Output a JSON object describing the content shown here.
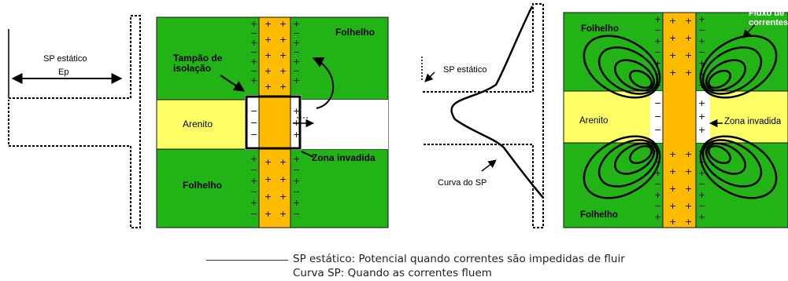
{
  "left_panel": {
    "sp_static_label": "SP estático",
    "ep_label": "Ep",
    "shale_top": "Folhelho",
    "shale_bottom": "Folhelho",
    "sand": "Arenito",
    "plug": "Tampão de\nisolação",
    "invaded": "Zona invadida"
  },
  "right_panel": {
    "sp_static_label": "SP estático",
    "sp_curve_label": "Curva do SP",
    "shale_top": "Folhelho",
    "shale_bottom": "Folhelho",
    "sand": "Arenito",
    "invaded": "Zona invadida",
    "current_flow": "Fluxo de\ncorrentes"
  },
  "legend": {
    "line1": "SP estático: Potencial quando correntes são impedidas de fluir",
    "line2": "Curva SP: Quando as correntes fluem"
  },
  "colors": {
    "shale": "#22b317",
    "sand": "#ffff66",
    "borehole": "#ffbb00"
  }
}
